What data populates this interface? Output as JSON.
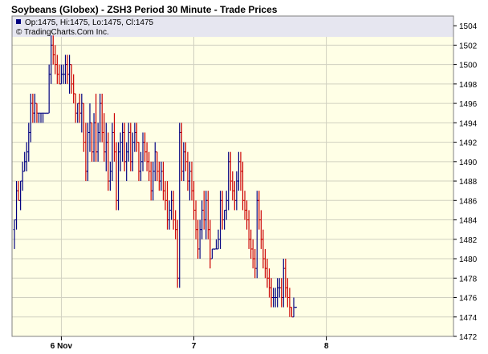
{
  "chart_data": {
    "type": "ohlc",
    "title": "Soybeans (Globex) - ZSH3 Period 30 Minute - Trade Prices",
    "legend": {
      "quote": "Op:1475, Hi:1475, Lo:1475, Cl:1475",
      "credit": "© TradingCharts.Com Inc."
    },
    "ylim": [
      1472,
      1505
    ],
    "y_ticks": [
      1472,
      1474,
      1476,
      1478,
      1480,
      1482,
      1484,
      1486,
      1488,
      1490,
      1492,
      1494,
      1496,
      1498,
      1500,
      1502,
      1504
    ],
    "x_labels": [
      {
        "label": "6 Nov",
        "bar": 23
      },
      {
        "label": "7",
        "bar": 88
      },
      {
        "label": "8",
        "bar": 153
      }
    ],
    "grid": true,
    "colors": {
      "up": "#000080",
      "down": "#cc0000",
      "plot_bg": "#ffffe6",
      "legend_bg": "#e6e6f0",
      "grid": "#d0d0c0",
      "frame": "#808080"
    },
    "bars": [
      [
        1483,
        1484,
        1481,
        1484
      ],
      [
        1484,
        1488,
        1483,
        1487
      ],
      [
        1487,
        1488,
        1486,
        1486
      ],
      [
        1486,
        1488,
        1485,
        1488
      ],
      [
        1488,
        1490,
        1487,
        1489
      ],
      [
        1489,
        1491,
        1489,
        1490
      ],
      [
        1490,
        1492,
        1489,
        1491
      ],
      [
        1491,
        1494,
        1490,
        1493
      ],
      [
        1493,
        1497,
        1492,
        1496
      ],
      [
        1496,
        1497,
        1494,
        1495
      ],
      [
        1495,
        1497,
        1494,
        1496
      ],
      [
        1496,
        1496,
        1494,
        1495
      ],
      [
        1495,
        1495,
        1494,
        1495
      ],
      [
        1495,
        1495,
        1494,
        1495
      ],
      [
        1495,
        1495,
        1494,
        1495
      ],
      [
        1495,
        1495,
        1495,
        1495
      ],
      [
        1495,
        1495,
        1495,
        1495
      ],
      [
        1495,
        1500,
        1495,
        1499
      ],
      [
        1499,
        1503,
        1498,
        1502
      ],
      [
        1502,
        1503,
        1500,
        1501
      ],
      [
        1501,
        1502,
        1499,
        1500
      ],
      [
        1500,
        1501,
        1498,
        1499
      ],
      [
        1499,
        1500,
        1498,
        1498
      ],
      [
        1498,
        1500,
        1498,
        1499
      ],
      [
        1499,
        1500,
        1498,
        1499
      ],
      [
        1499,
        1501,
        1498,
        1500
      ],
      [
        1500,
        1501,
        1498,
        1499
      ],
      [
        1499,
        1501,
        1497,
        1500
      ],
      [
        1500,
        1500,
        1497,
        1498
      ],
      [
        1498,
        1499,
        1496,
        1497
      ],
      [
        1497,
        1497,
        1494,
        1495
      ],
      [
        1495,
        1496,
        1494,
        1496
      ],
      [
        1496,
        1497,
        1494,
        1495
      ],
      [
        1495,
        1497,
        1493,
        1496
      ],
      [
        1496,
        1496,
        1491,
        1492
      ],
      [
        1492,
        1494,
        1488,
        1489
      ],
      [
        1489,
        1494,
        1488,
        1493
      ],
      [
        1493,
        1496,
        1491,
        1494
      ],
      [
        1494,
        1494,
        1490,
        1491
      ],
      [
        1491,
        1495,
        1490,
        1494
      ],
      [
        1494,
        1497,
        1490,
        1491
      ],
      [
        1491,
        1494,
        1490,
        1493
      ],
      [
        1493,
        1497,
        1492,
        1496
      ],
      [
        1496,
        1497,
        1492,
        1493
      ],
      [
        1493,
        1495,
        1490,
        1491
      ],
      [
        1491,
        1494,
        1489,
        1492
      ],
      [
        1492,
        1493,
        1487,
        1488
      ],
      [
        1488,
        1490,
        1487,
        1489
      ],
      [
        1489,
        1494,
        1488,
        1493
      ],
      [
        1493,
        1495,
        1490,
        1491
      ],
      [
        1491,
        1492,
        1485,
        1486
      ],
      [
        1486,
        1492,
        1485,
        1491
      ],
      [
        1491,
        1493,
        1489,
        1492
      ],
      [
        1492,
        1494,
        1490,
        1493
      ],
      [
        1493,
        1494,
        1489,
        1490
      ],
      [
        1490,
        1492,
        1488,
        1491
      ],
      [
        1491,
        1494,
        1490,
        1493
      ],
      [
        1493,
        1494,
        1489,
        1490
      ],
      [
        1490,
        1493,
        1489,
        1492
      ],
      [
        1492,
        1494,
        1491,
        1493
      ],
      [
        1493,
        1494,
        1491,
        1492
      ],
      [
        1492,
        1492,
        1488,
        1489
      ],
      [
        1489,
        1491,
        1488,
        1490
      ],
      [
        1490,
        1493,
        1489,
        1492
      ],
      [
        1492,
        1493,
        1490,
        1491
      ],
      [
        1491,
        1492,
        1489,
        1490
      ],
      [
        1490,
        1491,
        1488,
        1489
      ],
      [
        1489,
        1490,
        1486,
        1487
      ],
      [
        1487,
        1490,
        1486,
        1489
      ],
      [
        1489,
        1492,
        1488,
        1491
      ],
      [
        1491,
        1491,
        1488,
        1489
      ],
      [
        1489,
        1490,
        1487,
        1488
      ],
      [
        1488,
        1490,
        1487,
        1489
      ],
      [
        1489,
        1490,
        1486,
        1487
      ],
      [
        1487,
        1488,
        1485,
        1486
      ],
      [
        1486,
        1488,
        1483,
        1484
      ],
      [
        1484,
        1486,
        1483,
        1485
      ],
      [
        1485,
        1487,
        1484,
        1486
      ],
      [
        1486,
        1487,
        1483,
        1484
      ],
      [
        1484,
        1485,
        1482,
        1483
      ],
      [
        1483,
        1484,
        1477,
        1478
      ],
      [
        1478,
        1494,
        1477,
        1493
      ],
      [
        1493,
        1494,
        1488,
        1489
      ],
      [
        1489,
        1492,
        1488,
        1491
      ],
      [
        1491,
        1492,
        1489,
        1490
      ],
      [
        1490,
        1491,
        1487,
        1488
      ],
      [
        1488,
        1490,
        1486,
        1489
      ],
      [
        1489,
        1490,
        1486,
        1487
      ],
      [
        1487,
        1488,
        1484,
        1485
      ],
      [
        1485,
        1486,
        1482,
        1483
      ],
      [
        1483,
        1484,
        1480,
        1481
      ],
      [
        1481,
        1484,
        1480,
        1483
      ],
      [
        1483,
        1486,
        1482,
        1485
      ],
      [
        1485,
        1487,
        1483,
        1484
      ],
      [
        1484,
        1487,
        1482,
        1486
      ],
      [
        1486,
        1487,
        1482,
        1483
      ],
      [
        1483,
        1484,
        1479,
        1480
      ],
      [
        1480,
        1481,
        1480,
        1481
      ],
      [
        1481,
        1481,
        1481,
        1481
      ],
      [
        1481,
        1482,
        1481,
        1481
      ],
      [
        1481,
        1483,
        1481,
        1482
      ],
      [
        1482,
        1487,
        1481,
        1486
      ],
      [
        1486,
        1487,
        1483,
        1484
      ],
      [
        1484,
        1485,
        1483,
        1485
      ],
      [
        1485,
        1487,
        1484,
        1486
      ],
      [
        1486,
        1491,
        1485,
        1490
      ],
      [
        1490,
        1491,
        1487,
        1488
      ],
      [
        1488,
        1489,
        1486,
        1487
      ],
      [
        1487,
        1488,
        1485,
        1486
      ],
      [
        1486,
        1489,
        1485,
        1488
      ],
      [
        1488,
        1491,
        1487,
        1490
      ],
      [
        1490,
        1491,
        1487,
        1489
      ],
      [
        1489,
        1490,
        1485,
        1486
      ],
      [
        1486,
        1487,
        1484,
        1485
      ],
      [
        1485,
        1486,
        1483,
        1484
      ],
      [
        1484,
        1485,
        1481,
        1482
      ],
      [
        1482,
        1483,
        1480,
        1481
      ],
      [
        1481,
        1482,
        1479,
        1480
      ],
      [
        1480,
        1481,
        1478,
        1479
      ],
      [
        1479,
        1487,
        1478,
        1486
      ],
      [
        1486,
        1487,
        1483,
        1484
      ],
      [
        1484,
        1485,
        1481,
        1482
      ],
      [
        1482,
        1483,
        1479,
        1480
      ],
      [
        1480,
        1481,
        1478,
        1479
      ],
      [
        1479,
        1480,
        1477,
        1478
      ],
      [
        1478,
        1479,
        1476,
        1477
      ],
      [
        1477,
        1478,
        1475,
        1476
      ],
      [
        1476,
        1477,
        1475,
        1476
      ],
      [
        1476,
        1477,
        1475,
        1476
      ],
      [
        1476,
        1478,
        1475,
        1477
      ],
      [
        1477,
        1478,
        1476,
        1477
      ],
      [
        1477,
        1478,
        1475,
        1476
      ],
      [
        1476,
        1480,
        1475,
        1479
      ],
      [
        1479,
        1480,
        1476,
        1477
      ],
      [
        1477,
        1478,
        1475,
        1476
      ],
      [
        1476,
        1477,
        1474,
        1475
      ],
      [
        1475,
        1475,
        1474,
        1474
      ],
      [
        1474,
        1476,
        1474,
        1475
      ],
      [
        1475,
        1475,
        1475,
        1475
      ]
    ]
  }
}
